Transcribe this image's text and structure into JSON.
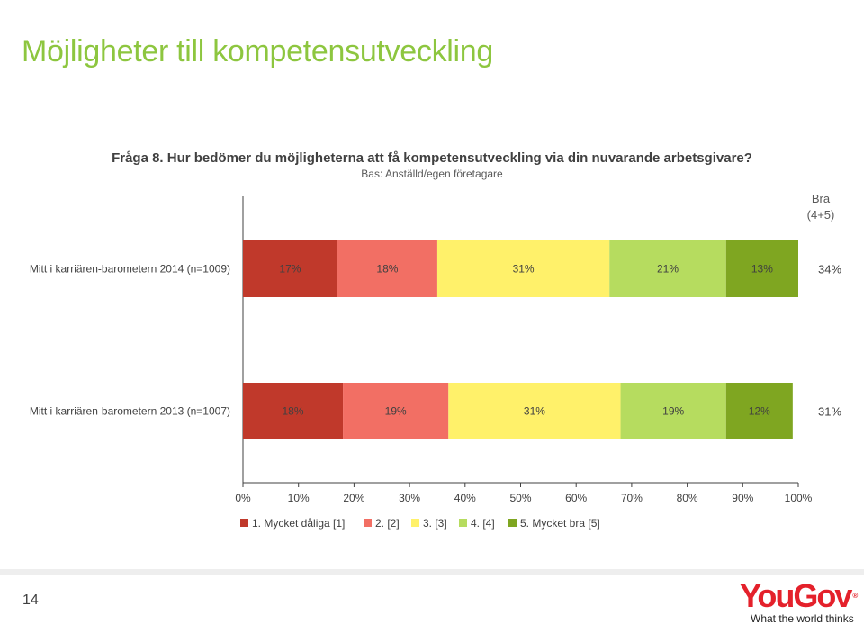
{
  "page": {
    "title": "Möjligheter till kompetensutveckling",
    "page_number": "14"
  },
  "brand": {
    "logo_name": "YouGov",
    "tagline": "What the world thinks",
    "logo_color": "#e4212b"
  },
  "chart_data": {
    "type": "bar",
    "orientation": "horizontal",
    "stacked": true,
    "percent_stacked": true,
    "title": "Fråga 8. Hur bedömer du möjligheterna att få kompetensutveckling via din nuvarande arbetsgivare?",
    "subtitle": "Bas: Anställd/egen företagare",
    "categories": [
      "Mitt i karriären-barometern 2014 (n=1009)",
      "Mitt i karriären-barometern 2013 (n=1007)"
    ],
    "series": [
      {
        "name": "1. Mycket dåliga [1]",
        "color": "#c0392b",
        "values": [
          17,
          18
        ],
        "labels": [
          "17%",
          "18%"
        ]
      },
      {
        "name": "2. [2]",
        "color": "#f26f64",
        "values": [
          18,
          19
        ],
        "labels": [
          "18%",
          "19%"
        ]
      },
      {
        "name": "3. [3]",
        "color": "#fff16a",
        "values": [
          31,
          31
        ],
        "labels": [
          "31%",
          "31%"
        ]
      },
      {
        "name": "4. [4]",
        "color": "#b6dc5f",
        "values": [
          21,
          19
        ],
        "labels": [
          "21%",
          "19%"
        ]
      },
      {
        "name": "5. Mycket bra [5]",
        "color": "#7fa621",
        "values": [
          13,
          12
        ],
        "labels": [
          "13%",
          "12%"
        ]
      }
    ],
    "summary_column": {
      "header_line1": "Bra",
      "header_line2": "(4+5)",
      "values": [
        "34%",
        "31%"
      ]
    },
    "x_ticks": [
      "0%",
      "10%",
      "20%",
      "30%",
      "40%",
      "50%",
      "60%",
      "70%",
      "80%",
      "90%",
      "100%"
    ],
    "xlim": [
      0,
      100
    ],
    "grid": false,
    "legend_position": "bottom"
  }
}
